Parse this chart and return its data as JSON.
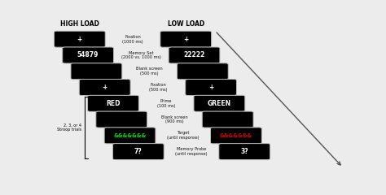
{
  "bg_color": "#ececec",
  "title_high": "HIGH LOAD",
  "title_low": "LOW LOAD",
  "labels_center": [
    "Fixation\n(1000 ms)",
    "Memory Set\n(2000 vs. 1000 ms)",
    "Blank screen\n(500 ms)",
    "Fixation\n(500 ms)",
    "Prime\n(100 ms)",
    "Blank screen\n(900 ms)",
    "Target\n(until response)",
    "Memory Probe\n(until response)"
  ],
  "high_contents": [
    "+",
    "54879",
    "",
    "+",
    "RED",
    "",
    "&&&&&&&",
    "7?"
  ],
  "low_contents": [
    "+",
    "22222",
    "",
    "+",
    "GREEN",
    "",
    "&&&&&&&",
    "3?"
  ],
  "high_text_colors": [
    "white",
    "white",
    "white",
    "white",
    "white",
    "white",
    "#00dd00",
    "white"
  ],
  "low_text_colors": [
    "white",
    "white",
    "white",
    "white",
    "white",
    "white",
    "#dd0000",
    "white"
  ],
  "bracket_label": "2, 3, or 4\nStroop trials"
}
